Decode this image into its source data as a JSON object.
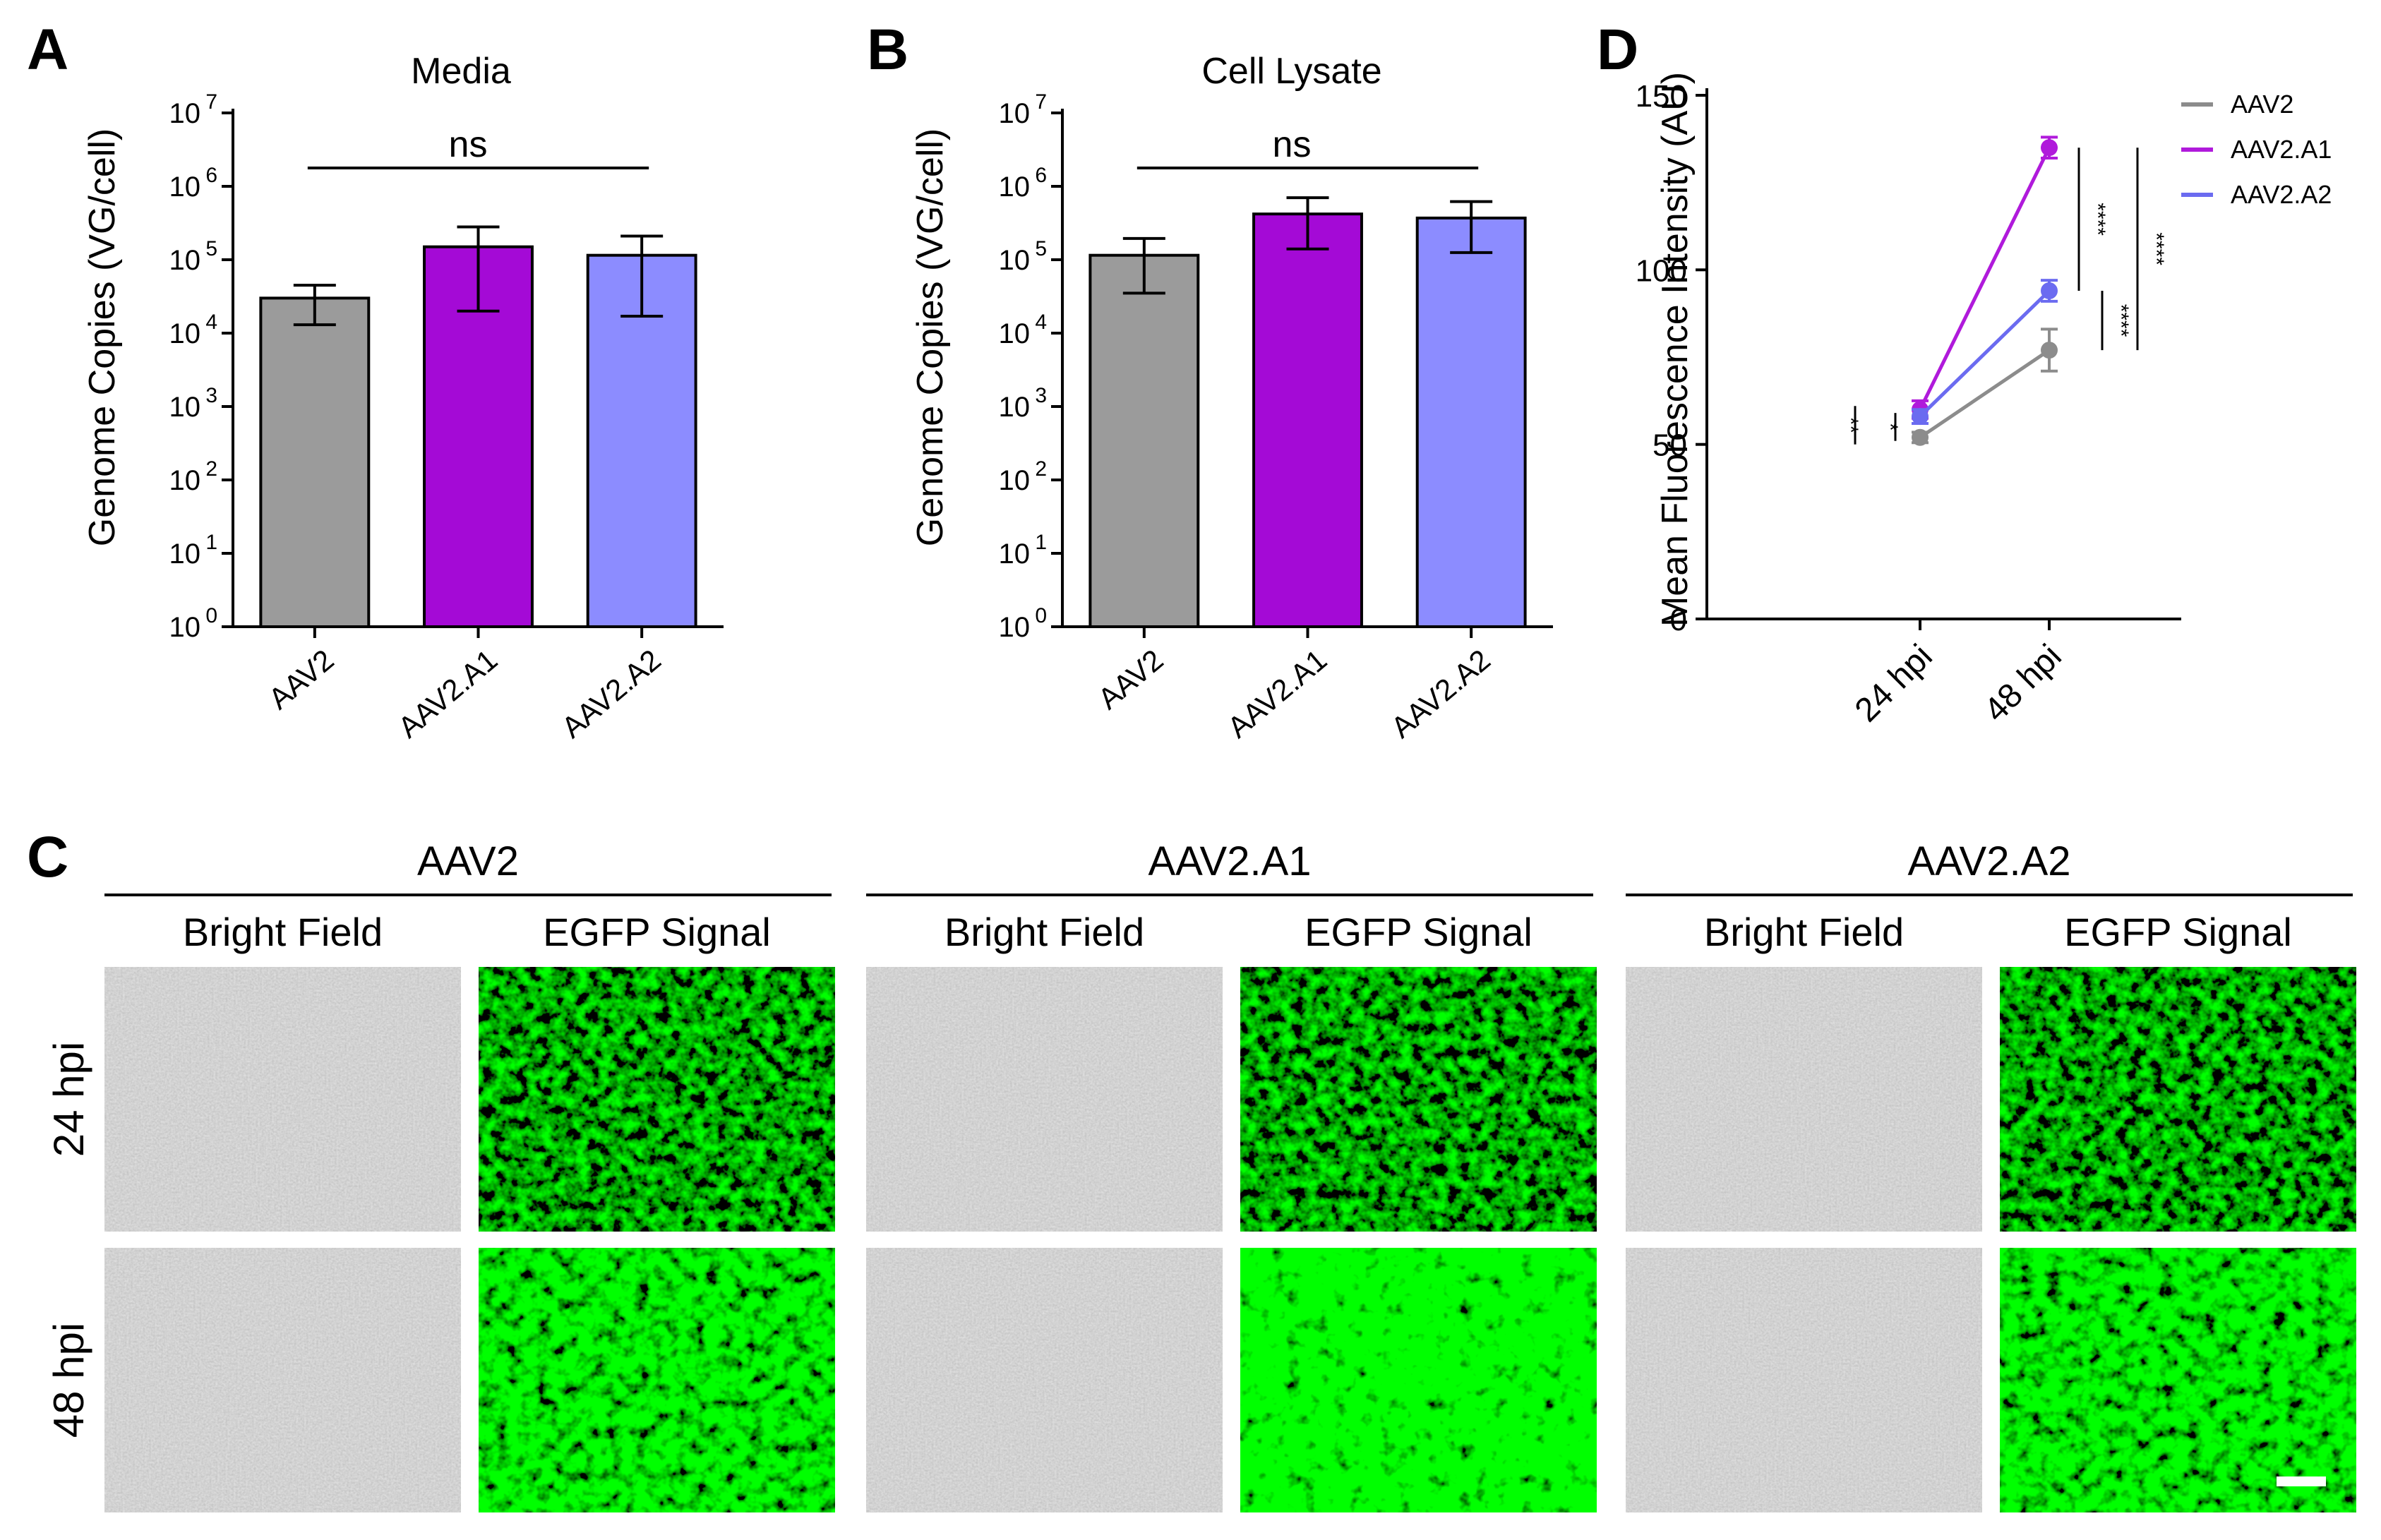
{
  "panels": {
    "a": {
      "letter": "A"
    },
    "b": {
      "letter": "B"
    },
    "c": {
      "letter": "C"
    },
    "d": {
      "letter": "D"
    }
  },
  "chart_data": [
    {
      "id": "A",
      "type": "bar",
      "title": "Media",
      "ylabel": "Genome Copies (VG/cell)",
      "xlabel": "",
      "yscale": "log10",
      "ylim": [
        1,
        10000000
      ],
      "yticks": [
        {
          "base": "10",
          "exp": "0"
        },
        {
          "base": "10",
          "exp": "1"
        },
        {
          "base": "10",
          "exp": "2"
        },
        {
          "base": "10",
          "exp": "3"
        },
        {
          "base": "10",
          "exp": "4"
        },
        {
          "base": "10",
          "exp": "5"
        },
        {
          "base": "10",
          "exp": "6"
        },
        {
          "base": "10",
          "exp": "7"
        }
      ],
      "categories": [
        "AAV2",
        "AAV2.A1",
        "AAV2.A2"
      ],
      "values": [
        30000,
        150000,
        115000
      ],
      "error_low": [
        13000,
        20000,
        17000
      ],
      "error_high": [
        45000,
        280000,
        210000
      ],
      "colors": [
        "#9b9b9b",
        "#a40ad6",
        "#8c8cff"
      ],
      "significance": "ns"
    },
    {
      "id": "B",
      "type": "bar",
      "title": "Cell Lysate",
      "ylabel": "Genome Copies (VG/cell)",
      "xlabel": "",
      "yscale": "log10",
      "ylim": [
        1,
        10000000
      ],
      "yticks": [
        {
          "base": "10",
          "exp": "0"
        },
        {
          "base": "10",
          "exp": "1"
        },
        {
          "base": "10",
          "exp": "2"
        },
        {
          "base": "10",
          "exp": "3"
        },
        {
          "base": "10",
          "exp": "4"
        },
        {
          "base": "10",
          "exp": "5"
        },
        {
          "base": "10",
          "exp": "6"
        },
        {
          "base": "10",
          "exp": "7"
        }
      ],
      "categories": [
        "AAV2",
        "AAV2.A1",
        "AAV2.A2"
      ],
      "values": [
        115000,
        420000,
        370000
      ],
      "error_low": [
        35000,
        140000,
        125000
      ],
      "error_high": [
        195000,
        700000,
        620000
      ],
      "colors": [
        "#9b9b9b",
        "#a40ad6",
        "#8c8cff"
      ],
      "significance": "ns"
    },
    {
      "id": "D",
      "type": "line",
      "title": "",
      "ylabel": "Mean Fluorescence Intensity (AU)",
      "xlabel": "",
      "ylim": [
        0,
        150
      ],
      "yticks": [
        "0",
        "50",
        "100",
        "150"
      ],
      "categories": [
        "24 hpi",
        "48 hpi"
      ],
      "series": [
        {
          "name": "AAV2",
          "values": [
            52,
            77
          ],
          "errors": [
            1.5,
            6
          ],
          "color": "#8c8c8c"
        },
        {
          "name": "AAV2.A1",
          "values": [
            60,
            135
          ],
          "errors": [
            2.5,
            3
          ],
          "color": "#b01adb"
        },
        {
          "name": "AAV2.A2",
          "values": [
            58,
            94
          ],
          "errors": [
            2,
            3
          ],
          "color": "#6b6bf0"
        }
      ],
      "annotations": [
        "**",
        "*",
        "****",
        "****",
        "****"
      ]
    }
  ],
  "panel_c": {
    "groups": [
      "AAV2",
      "AAV2.A1",
      "AAV2.A2"
    ],
    "columns": [
      "Bright Field",
      "EGFP Signal"
    ],
    "rows": [
      "24 hpi",
      "48 hpi"
    ],
    "egfp_intensity": [
      [
        0.55,
        0.62,
        0.5
      ],
      [
        0.75,
        0.95,
        0.78
      ]
    ],
    "scale_bar_label": ""
  }
}
